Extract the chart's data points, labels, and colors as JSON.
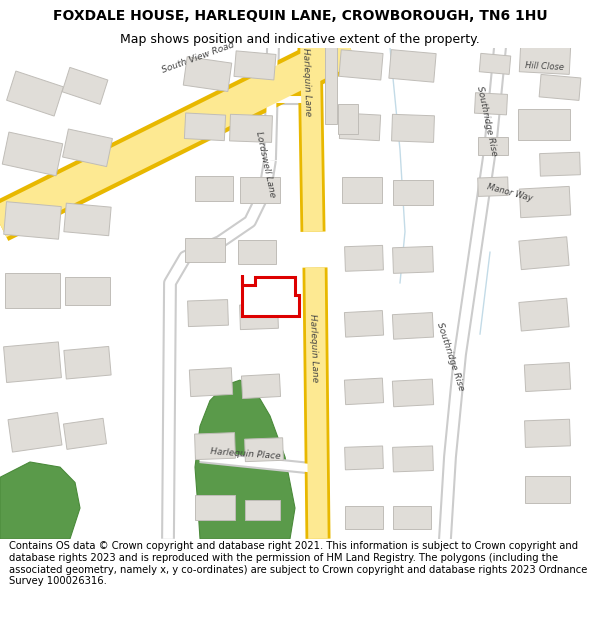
{
  "title": "FOXDALE HOUSE, HARLEQUIN LANE, CROWBOROUGH, TN6 1HU",
  "subtitle": "Map shows position and indicative extent of the property.",
  "footer": "Contains OS data © Crown copyright and database right 2021. This information is subject to Crown copyright and database rights 2023 and is reproduced with the permission of HM Land Registry. The polygons (including the associated geometry, namely x, y co-ordinates) are subject to Crown copyright and database rights 2023 Ordnance Survey 100026316.",
  "bg_color": "#f5f3ef",
  "road_yellow_fill": "#fde992",
  "road_yellow_edge": "#e8b800",
  "road_white_fill": "#ffffff",
  "road_white_edge": "#cccccc",
  "building_fill": "#e0ddd8",
  "building_stroke": "#c0bdb8",
  "green_fill": "#5a9a4a",
  "green_edge": "#4a8a3a",
  "plot_stroke": "#dd0000",
  "plot_fill": "#ffffff",
  "water_color": "#b8d8e8",
  "title_fontsize": 10,
  "subtitle_fontsize": 9,
  "footer_fontsize": 7.2,
  "label_color": "#444444",
  "label_fontsize": 6.5
}
